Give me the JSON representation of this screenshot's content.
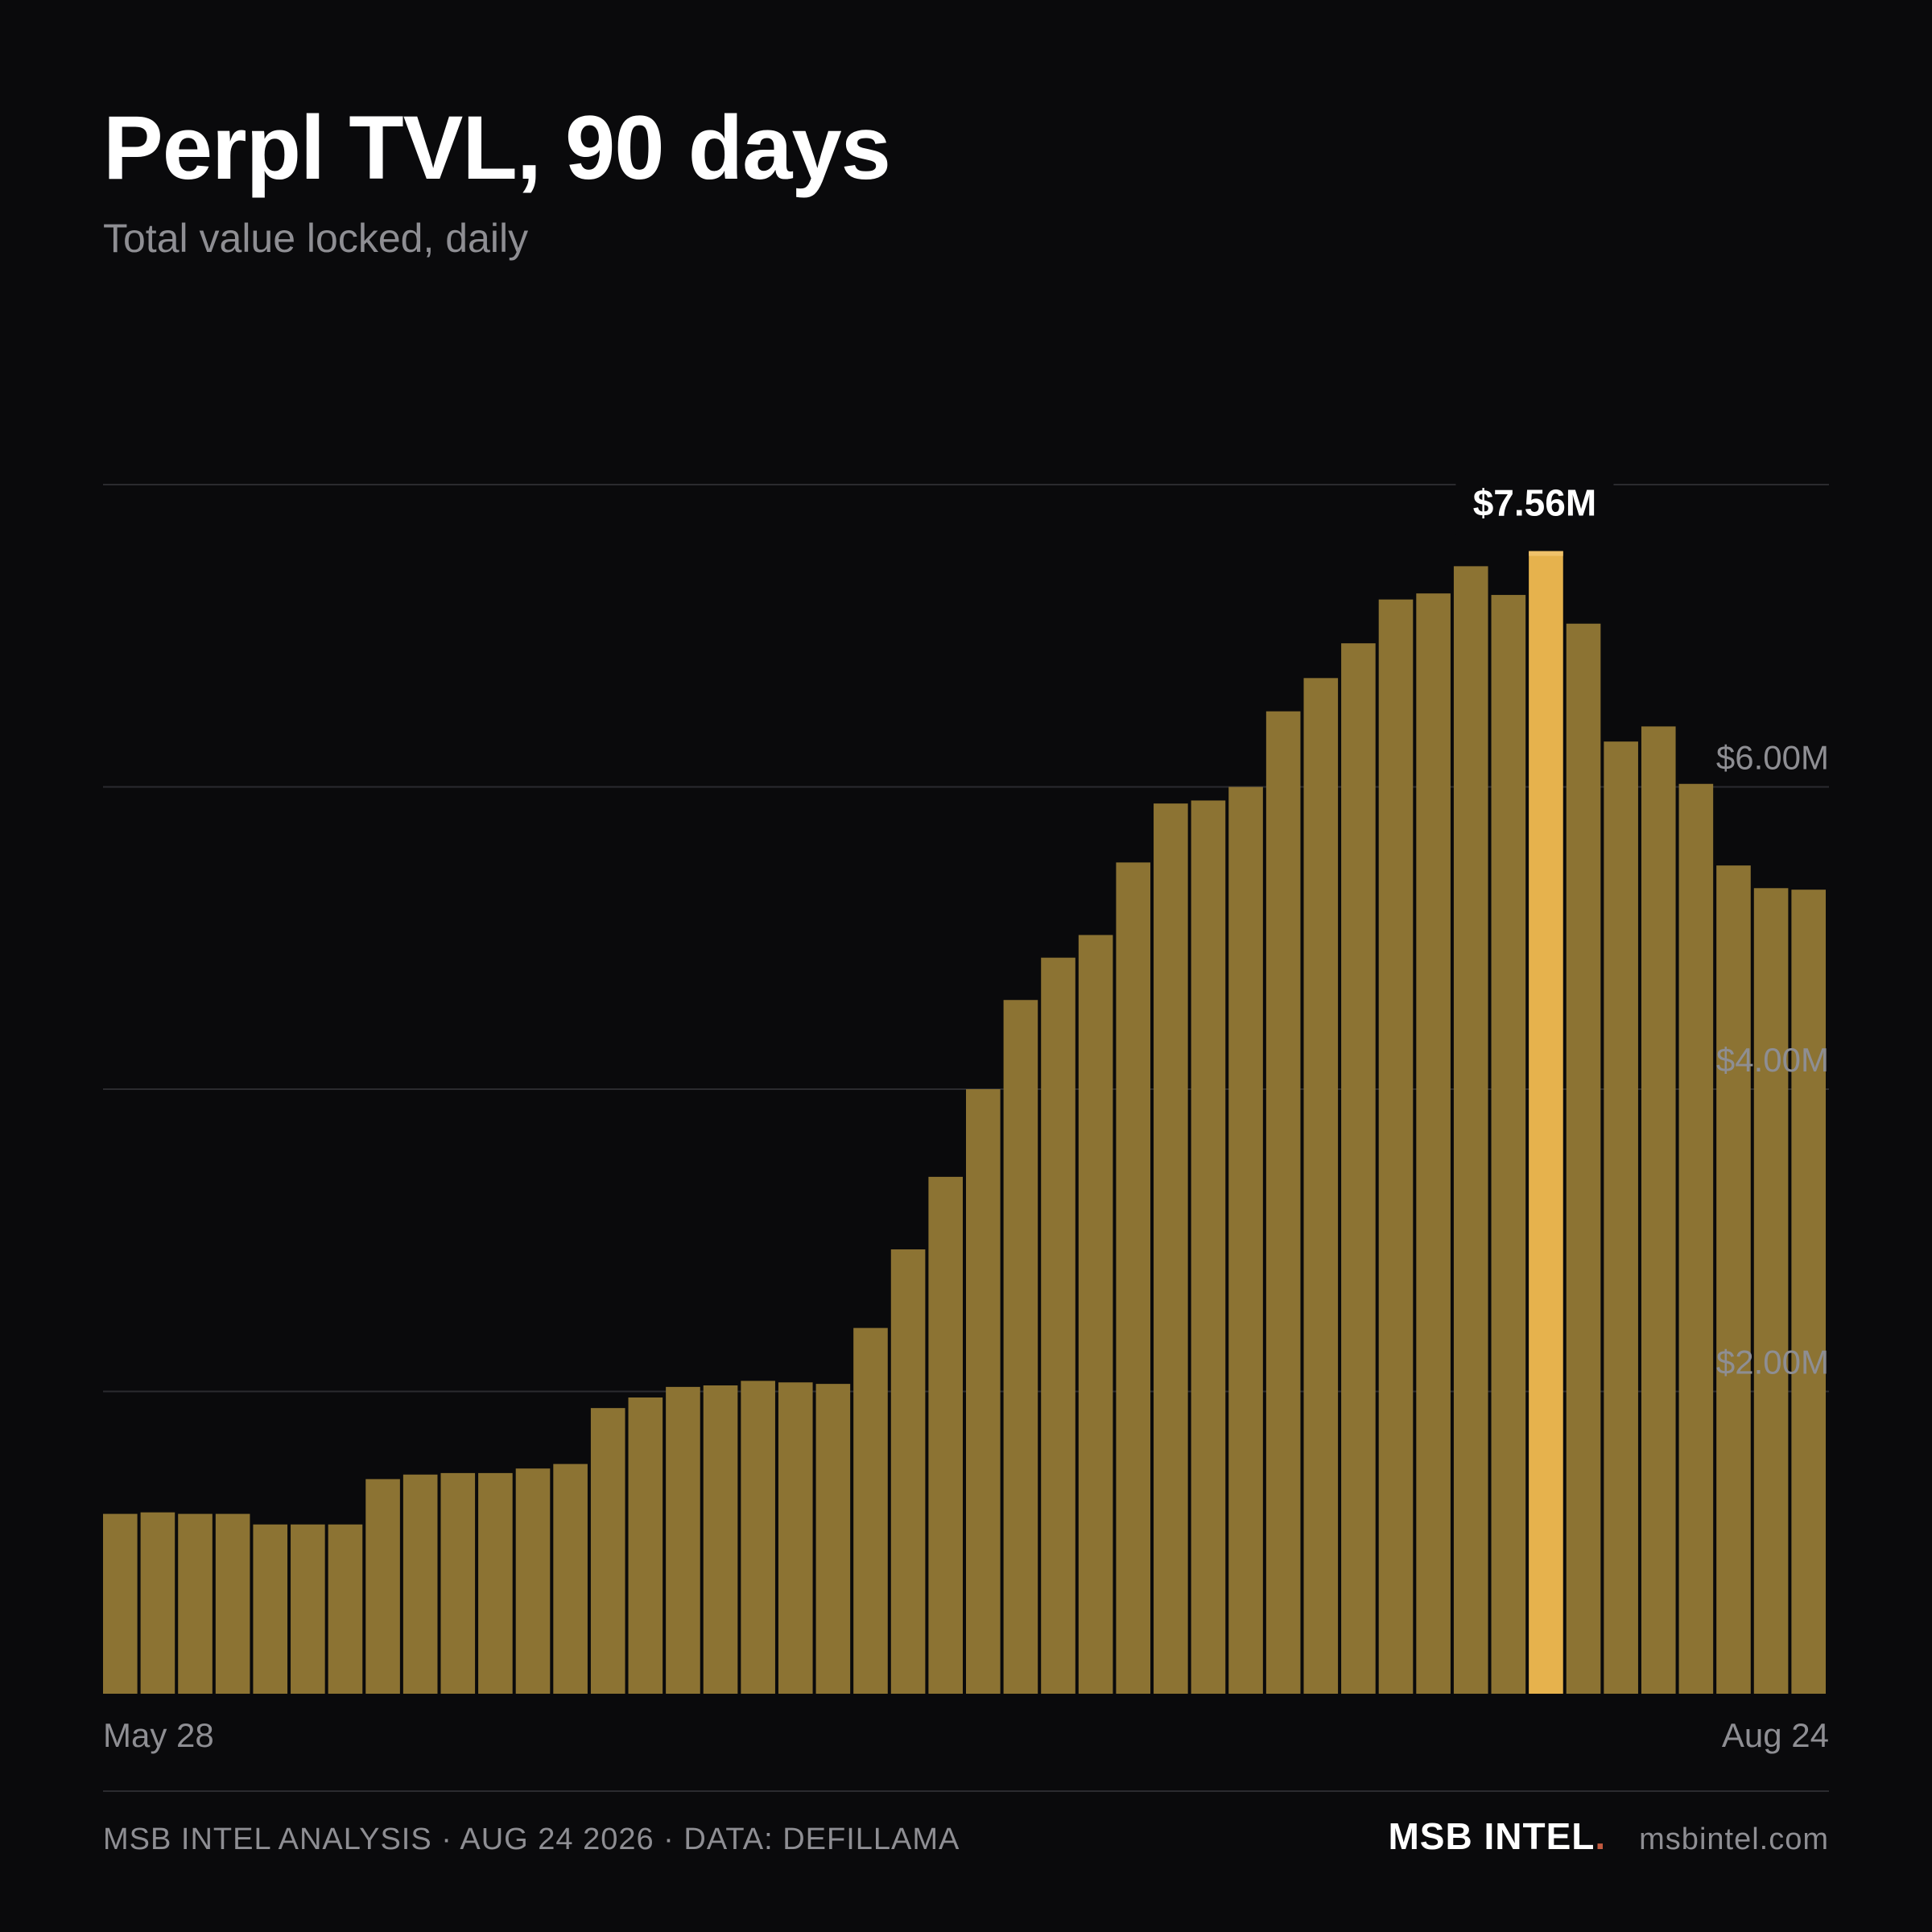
{
  "chart_data": {
    "type": "bar",
    "title": "Perpl TVL, 90 days",
    "subtitle": "Total value locked, daily",
    "x_start_label": "May 28",
    "x_end_label": "Aug 24",
    "y_ticks": [
      {
        "value": 2000000,
        "label": "$2.00M"
      },
      {
        "value": 4000000,
        "label": "$4.00M"
      },
      {
        "value": 6000000,
        "label": "$6.00M"
      }
    ],
    "ylim": [
      0,
      8000000
    ],
    "grid": true,
    "peak_label": "$7.56M",
    "peak_index": 38,
    "values": [
      1190000,
      1200000,
      1190000,
      1190000,
      1120000,
      1120000,
      1120000,
      1420000,
      1450000,
      1460000,
      1460000,
      1490000,
      1520000,
      1890000,
      1960000,
      2030000,
      2040000,
      2070000,
      2060000,
      2050000,
      2420000,
      2940000,
      3420000,
      4000000,
      4590000,
      4870000,
      5020000,
      5500000,
      5890000,
      5910000,
      6000000,
      6500000,
      6720000,
      6950000,
      7240000,
      7280000,
      7460000,
      7270000,
      7560000,
      7080000,
      6300000,
      6400000,
      6020000,
      5480000,
      5330000,
      5320000
    ],
    "colors": {
      "bar": "#8c7333",
      "highlight": "#e6b24d",
      "background": "#0a0a0c"
    }
  },
  "footer": {
    "source": "MSB INTEL ANALYSIS · AUG 24 2026 · DATA: DEFILLAMA",
    "brand": "MSB INTEL",
    "brand_dot": ".",
    "site": "msbintel.com"
  }
}
